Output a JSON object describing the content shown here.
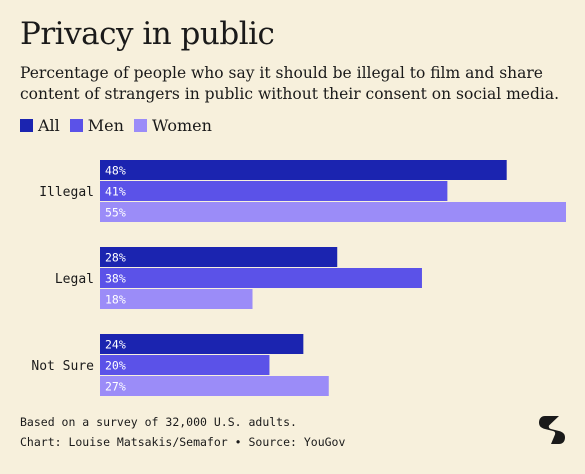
{
  "title": "Privacy in public",
  "subtitle": "Percentage of people who say it should be illegal to film and share content of strangers in public without their consent on social media.",
  "colors": {
    "background": "#f7f0dc",
    "All": "#1b24b0",
    "Men": "#5b52e8",
    "Women": "#9b8cf8"
  },
  "legend": [
    {
      "label": "All",
      "color": "#1b24b0"
    },
    {
      "label": "Men",
      "color": "#5b52e8"
    },
    {
      "label": "Women",
      "color": "#9b8cf8"
    }
  ],
  "chart_data": {
    "type": "bar",
    "orientation": "horizontal",
    "title": "Privacy in public",
    "categories": [
      "Illegal",
      "Legal",
      "Not Sure"
    ],
    "series": [
      {
        "name": "All",
        "values": [
          48,
          28,
          24
        ],
        "labels": [
          "48%",
          "28%",
          "24%"
        ]
      },
      {
        "name": "Men",
        "values": [
          41,
          38,
          20
        ],
        "labels": [
          "41%",
          "38%",
          "20%"
        ]
      },
      {
        "name": "Women",
        "values": [
          55,
          18,
          27
        ],
        "labels": [
          "55%",
          "18%",
          "27%"
        ]
      }
    ],
    "xlim": [
      0,
      55
    ],
    "grid": false,
    "legend_position": "top-left"
  },
  "footnote": {
    "line1": "Based on a survey of 32,000 U.S. adults.",
    "line2": "Chart: Louise Matsakis/Semafor • Source: YouGov"
  },
  "logo": {
    "icon": "semafor-logo-icon"
  }
}
